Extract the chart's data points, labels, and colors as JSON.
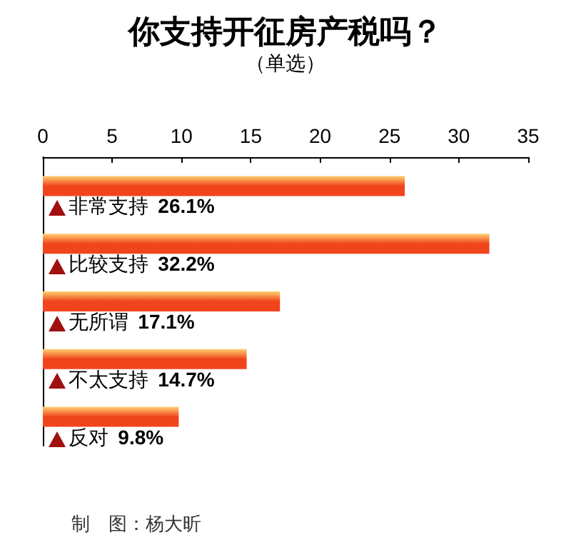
{
  "chart_data": {
    "type": "bar",
    "orientation": "horizontal",
    "title": "你支持开征房产税吗？",
    "subtitle": "（单选）",
    "categories": [
      "非常支持",
      "比较支持",
      "无所谓",
      "不太支持",
      "反对"
    ],
    "values": [
      26.1,
      32.2,
      17.1,
      14.7,
      9.8
    ],
    "value_labels": [
      "26.1%",
      "32.2%",
      "17.1%",
      "14.7%",
      "9.8%"
    ],
    "color": "#f0441c",
    "xlim": [
      0,
      35
    ],
    "xticks": [
      0,
      5,
      10,
      15,
      20,
      25,
      30,
      35
    ],
    "grid": false,
    "annotations": [
      "制　图：杨大昕"
    ]
  }
}
